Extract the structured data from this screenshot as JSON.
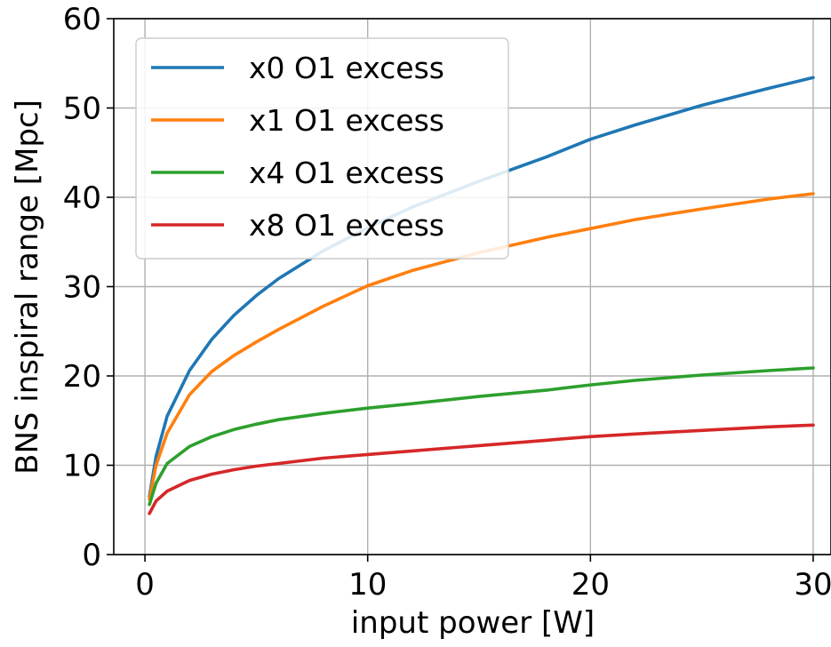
{
  "chart_data": {
    "type": "line",
    "xlabel": "input power [W]",
    "ylabel": "BNS inspiral range [Mpc]",
    "xlim": [
      -1.4,
      30.8
    ],
    "ylim": [
      0,
      60
    ],
    "xticks": [
      0,
      10,
      20,
      30
    ],
    "yticks": [
      0,
      10,
      20,
      30,
      40,
      50,
      60
    ],
    "grid": true,
    "legend_position": "upper-left",
    "series": [
      {
        "name": "x0 O1 excess",
        "color": "#1f77b4",
        "x": [
          0.2,
          0.5,
          1,
          2,
          3,
          4,
          5,
          6,
          8,
          10,
          12,
          15,
          18,
          20,
          22,
          25,
          28,
          30
        ],
        "y": [
          6.5,
          11.0,
          15.5,
          20.6,
          24.1,
          26.8,
          29.0,
          30.9,
          34.0,
          36.6,
          38.9,
          41.8,
          44.5,
          46.5,
          48.1,
          50.3,
          52.2,
          53.4
        ]
      },
      {
        "name": "x1 O1 excess",
        "color": "#ff7f0e",
        "x": [
          0.2,
          0.5,
          1,
          2,
          3,
          4,
          5,
          6,
          8,
          10,
          12,
          15,
          18,
          20,
          22,
          25,
          28,
          30
        ],
        "y": [
          6.2,
          10.0,
          13.6,
          17.9,
          20.5,
          22.3,
          23.8,
          25.2,
          27.8,
          30.1,
          31.8,
          33.8,
          35.5,
          36.5,
          37.5,
          38.7,
          39.8,
          40.4
        ]
      },
      {
        "name": "x4 O1 excess",
        "color": "#2ca02c",
        "x": [
          0.2,
          0.5,
          1,
          2,
          3,
          4,
          5,
          6,
          8,
          10,
          12,
          15,
          18,
          20,
          22,
          25,
          28,
          30
        ],
        "y": [
          5.6,
          8.0,
          10.2,
          12.1,
          13.2,
          14.0,
          14.6,
          15.1,
          15.8,
          16.4,
          16.9,
          17.7,
          18.4,
          19.0,
          19.5,
          20.1,
          20.6,
          20.9
        ]
      },
      {
        "name": "x8 O1 excess",
        "color": "#d62728",
        "x": [
          0.2,
          0.5,
          1,
          2,
          3,
          4,
          5,
          6,
          8,
          10,
          12,
          15,
          18,
          20,
          22,
          25,
          28,
          30
        ],
        "y": [
          4.6,
          6.0,
          7.1,
          8.3,
          9.0,
          9.5,
          9.9,
          10.2,
          10.8,
          11.2,
          11.6,
          12.2,
          12.8,
          13.2,
          13.5,
          13.9,
          14.3,
          14.5
        ]
      }
    ]
  }
}
